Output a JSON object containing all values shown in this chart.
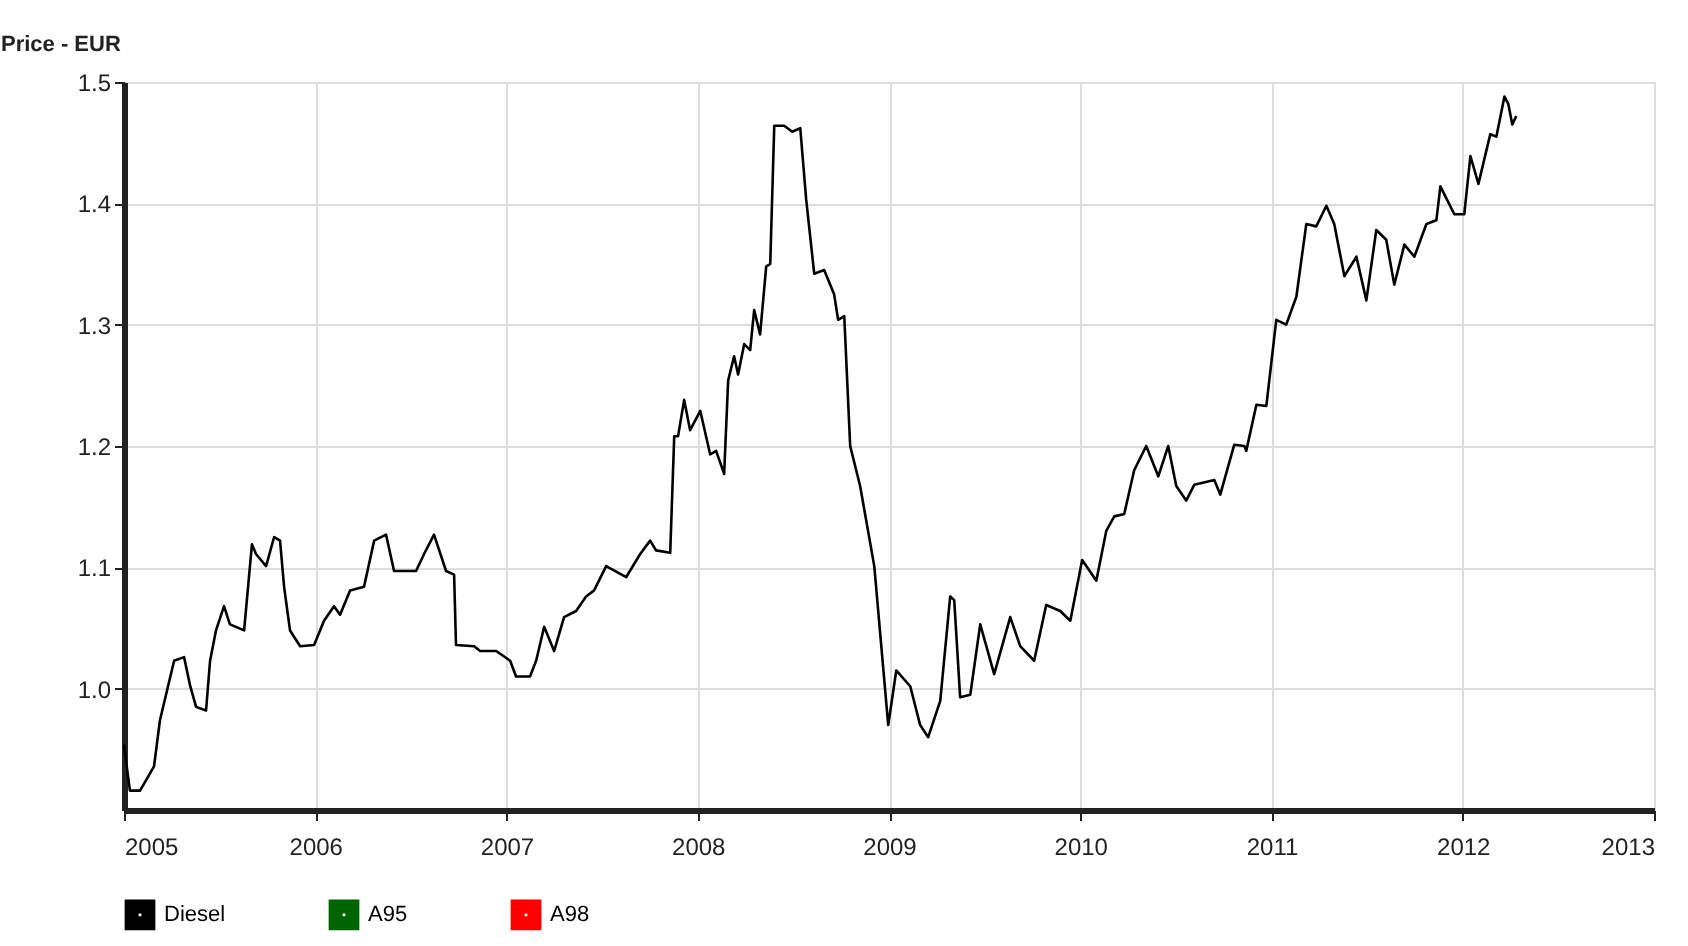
{
  "chart_data": {
    "type": "line",
    "ylabel": "Price - EUR",
    "xlim": [
      2005,
      2013
    ],
    "xticks": [
      2005,
      2006,
      2007,
      2008,
      2009,
      2010,
      2011,
      2012,
      2013
    ],
    "ylim": [
      0.9,
      1.5
    ],
    "yticks": [
      {
        "value": 1.0,
        "label": "1.0"
      },
      1.1,
      1.2,
      1.3,
      1.4,
      1.5
    ],
    "grid": true,
    "legend": "bottom",
    "series": [
      {
        "name": "Diesel",
        "color": "#000000",
        "x": [
          2005.0,
          2005.01,
          2005.031,
          2005.084,
          2005.157,
          2005.188,
          2005.262,
          2005.314,
          2005.345,
          2005.377,
          2005.429,
          2005.45,
          2005.481,
          2005.523,
          2005.554,
          2005.628,
          2005.669,
          2005.69,
          2005.743,
          2005.785,
          2005.816,
          2005.837,
          2005.868,
          2005.921,
          2005.994,
          2006.046,
          2006.098,
          2006.13,
          2006.182,
          2006.255,
          2006.308,
          2006.37,
          2006.412,
          2006.527,
          2006.569,
          2006.621,
          2006.684,
          2006.726,
          2006.736,
          2006.831,
          2006.862,
          2006.946,
          2007.019,
          2007.05,
          2007.123,
          2007.155,
          2007.197,
          2007.249,
          2007.301,
          2007.364,
          2007.416,
          2007.458,
          2007.521,
          2007.626,
          2007.699,
          2007.751,
          2007.782,
          2007.856,
          2007.877,
          2007.897,
          2007.929,
          2007.96,
          2008.013,
          2008.065,
          2008.096,
          2008.138,
          2008.159,
          2008.19,
          2008.211,
          2008.243,
          2008.274,
          2008.295,
          2008.326,
          2008.358,
          2008.379,
          2008.4,
          2008.452,
          2008.494,
          2008.536,
          2008.567,
          2008.609,
          2008.661,
          2008.713,
          2008.734,
          2008.766,
          2008.797,
          2008.849,
          2008.923,
          2008.996,
          2009.038,
          2009.111,
          2009.163,
          2009.205,
          2009.268,
          2009.32,
          2009.341,
          2009.372,
          2009.425,
          2009.477,
          2009.55,
          2009.634,
          2009.686,
          2009.759,
          2009.822,
          2009.895,
          2009.948,
          2010.01,
          2010.084,
          2010.136,
          2010.178,
          2010.23,
          2010.282,
          2010.345,
          2010.408,
          2010.46,
          2010.502,
          2010.554,
          2010.596,
          2010.701,
          2010.732,
          2010.805,
          2010.858,
          2010.868,
          2010.921,
          2010.973,
          2011.025,
          2011.077,
          2011.13,
          2011.182,
          2011.234,
          2011.287,
          2011.328,
          2011.381,
          2011.444,
          2011.496,
          2011.548,
          2011.6,
          2011.642,
          2011.695,
          2011.747,
          2011.81,
          2011.862,
          2011.883,
          2011.956,
          2012.008,
          2012.04,
          2012.082,
          2012.144,
          2012.176,
          2012.218,
          2012.238,
          2012.259,
          2012.28
        ],
        "values": [
          0.954,
          0.941,
          0.916,
          0.916,
          0.936,
          0.974,
          1.023,
          1.026,
          1.003,
          0.985,
          0.982,
          1.023,
          1.048,
          1.068,
          1.053,
          1.048,
          1.119,
          1.111,
          1.101,
          1.125,
          1.122,
          1.084,
          1.048,
          1.035,
          1.036,
          1.056,
          1.068,
          1.061,
          1.081,
          1.084,
          1.122,
          1.127,
          1.097,
          1.097,
          1.111,
          1.127,
          1.097,
          1.094,
          1.036,
          1.035,
          1.031,
          1.031,
          1.023,
          1.01,
          1.01,
          1.023,
          1.051,
          1.031,
          1.059,
          1.064,
          1.076,
          1.081,
          1.101,
          1.092,
          1.111,
          1.122,
          1.114,
          1.112,
          1.208,
          1.208,
          1.238,
          1.213,
          1.229,
          1.193,
          1.196,
          1.177,
          1.254,
          1.274,
          1.259,
          1.284,
          1.279,
          1.312,
          1.292,
          1.348,
          1.35,
          1.464,
          1.464,
          1.459,
          1.462,
          1.403,
          1.342,
          1.345,
          1.325,
          1.304,
          1.307,
          1.2,
          1.167,
          1.101,
          0.97,
          1.015,
          1.002,
          0.97,
          0.96,
          0.99,
          1.076,
          1.073,
          0.993,
          0.995,
          1.053,
          1.012,
          1.059,
          1.035,
          1.023,
          1.069,
          1.064,
          1.056,
          1.106,
          1.089,
          1.13,
          1.142,
          1.144,
          1.18,
          1.2,
          1.175,
          1.2,
          1.167,
          1.155,
          1.168,
          1.172,
          1.16,
          1.201,
          1.2,
          1.196,
          1.234,
          1.233,
          1.304,
          1.3,
          1.323,
          1.383,
          1.381,
          1.398,
          1.383,
          1.34,
          1.356,
          1.32,
          1.378,
          1.37,
          1.333,
          1.366,
          1.356,
          1.383,
          1.386,
          1.414,
          1.391,
          1.391,
          1.439,
          1.416,
          1.457,
          1.455,
          1.488,
          1.482,
          1.465,
          1.472
        ]
      },
      {
        "name": "A95",
        "color": "#006400"
      },
      {
        "name": "A98",
        "color": "#ff0000"
      }
    ]
  }
}
